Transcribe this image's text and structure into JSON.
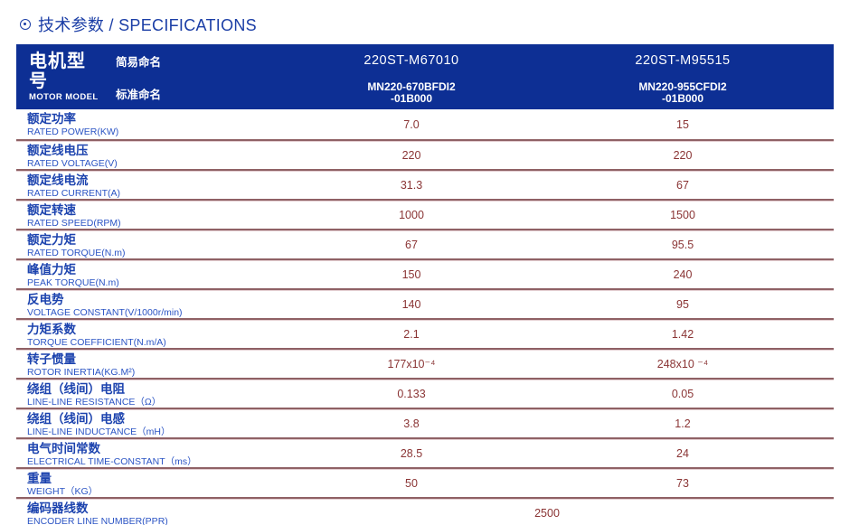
{
  "page_title": "技术参数 / SPECIFICATIONS",
  "colors": {
    "header_bg": "#0d2f94",
    "title_blue": "#1b3ea6",
    "label_zh_blue": "#1c43ae",
    "label_en_blue": "#2b54c4",
    "value_maroon": "#8a3434",
    "divider_dark": "#8f6165",
    "divider_light": "#e3cdd0"
  },
  "table": {
    "header": {
      "zh": "电机型号",
      "en": "MOTOR MODEL",
      "simple_label": "简易命名",
      "standard_label": "标准命名"
    },
    "columns": [
      {
        "simple_name": "220ST-M67010",
        "standard_name_line1": "MN220-670BFDI2",
        "standard_name_line2": "-01B000"
      },
      {
        "simple_name": "220ST-M95515",
        "standard_name_line1": "MN220-955CFDI2",
        "standard_name_line2": "-01B000"
      }
    ],
    "rows": [
      {
        "zh": "额定功率",
        "en": "RATED POWER(KW)",
        "v1": "7.0",
        "v2": "15"
      },
      {
        "zh": "额定线电压",
        "en": "RATED VOLTAGE(V)",
        "v1": "220",
        "v2": "220"
      },
      {
        "zh": "额定线电流",
        "en": "RATED CURRENT(A)",
        "v1": "31.3",
        "v2": "67"
      },
      {
        "zh": "额定转速",
        "en": "RATED SPEED(RPM)",
        "v1": "1000",
        "v2": "1500"
      },
      {
        "zh": "额定力矩",
        "en": "RATED TORQUE(N.m)",
        "v1": "67",
        "v2": "95.5"
      },
      {
        "zh": "峰值力矩",
        "en": "PEAK TORQUE(N.m)",
        "v1": "150",
        "v2": "240"
      },
      {
        "zh": "反电势",
        "en": "VOLTAGE CONSTANT(V/1000r/min)",
        "v1": "140",
        "v2": "95"
      },
      {
        "zh": "力矩系数",
        "en": "TORQUE COEFFICIENT(N.m/A)",
        "v1": "2.1",
        "v2": "1.42"
      },
      {
        "zh": "转子惯量",
        "en": "ROTOR INERTIA(KG.M²)",
        "v1": "177x10⁻⁴",
        "v2": "248x10 ⁻⁴"
      },
      {
        "zh": "绕组（线间）电阻",
        "en": "LINE-LINE RESISTANCE（Ω）",
        "v1": "0.133",
        "v2": "0.05"
      },
      {
        "zh": "绕组（线间）电感",
        "en": "LINE-LINE INDUCTANCE（mH）",
        "v1": "3.8",
        "v2": "1.2"
      },
      {
        "zh": "电气时间常数",
        "en": "ELECTRICAL TIME-CONSTANT（ms）",
        "v1": "28.5",
        "v2": "24"
      },
      {
        "zh": "重量",
        "en": "WEIGHT（KG）",
        "v1": "50",
        "v2": "73"
      }
    ],
    "merged_row": {
      "zh": "编码器线数",
      "en": "ENCODER LINE NUMBER(PPR)",
      "value": "2500"
    }
  }
}
